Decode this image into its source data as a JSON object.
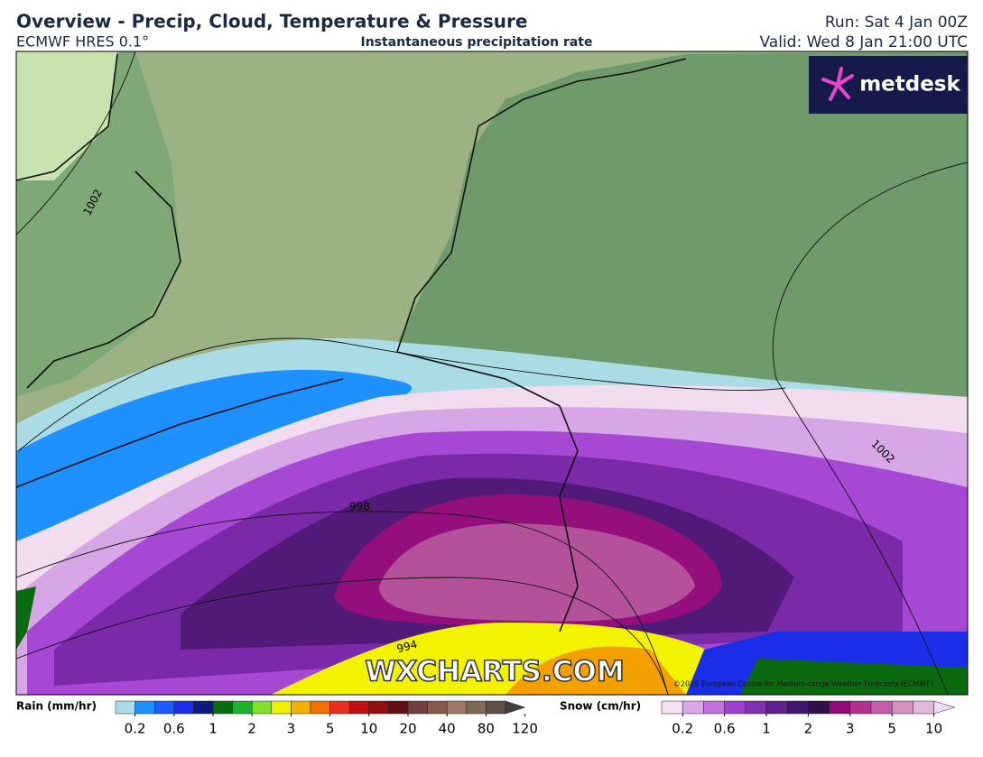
{
  "header": {
    "title": "Overview - Precip, Cloud, Temperature & Pressure",
    "model": "ECMWF HRES 0.1°",
    "product": "Instantaneous precipitation rate",
    "run": "Run: Sat 4 Jan 00Z",
    "valid": "Valid: Wed 8 Jan 21:00 UTC"
  },
  "map": {
    "logo": "metdesk",
    "watermark": "WXCHARTS.COM",
    "copyright": "©2025 European Centre for Medium-range Weather Forecasts (ECMWF)",
    "isobars": [
      "1002",
      "998",
      "994",
      "1002"
    ]
  },
  "legend": {
    "rain": {
      "label": "Rain (mm/hr)",
      "ticks": [
        "0.2",
        "0.6",
        "1",
        "2",
        "3",
        "5",
        "10",
        "20",
        "40",
        "80",
        "120"
      ],
      "colors": [
        "#a6dde6",
        "#1e90ff",
        "#1a5cff",
        "#1a2ee8",
        "#101a80",
        "#0a6a10",
        "#20b030",
        "#80e030",
        "#f0f000",
        "#f0b000",
        "#f07000",
        "#e83020",
        "#c01010",
        "#901010",
        "#601010",
        "#704040",
        "#8a5a50",
        "#a07868",
        "#806858",
        "#605048",
        "#404040"
      ]
    },
    "snow": {
      "label": "Snow (cm/hr)",
      "ticks": [
        "0.2",
        "0.6",
        "1",
        "2",
        "3",
        "5",
        "10"
      ],
      "colors": [
        "#f5e0f2",
        "#d8a8e6",
        "#c070e0",
        "#a040d0",
        "#8030b0",
        "#602090",
        "#401870",
        "#301048",
        "#900a78",
        "#b03090",
        "#c060a8",
        "#d090c0",
        "#e0b8d8",
        "#f0dcf0"
      ]
    }
  }
}
